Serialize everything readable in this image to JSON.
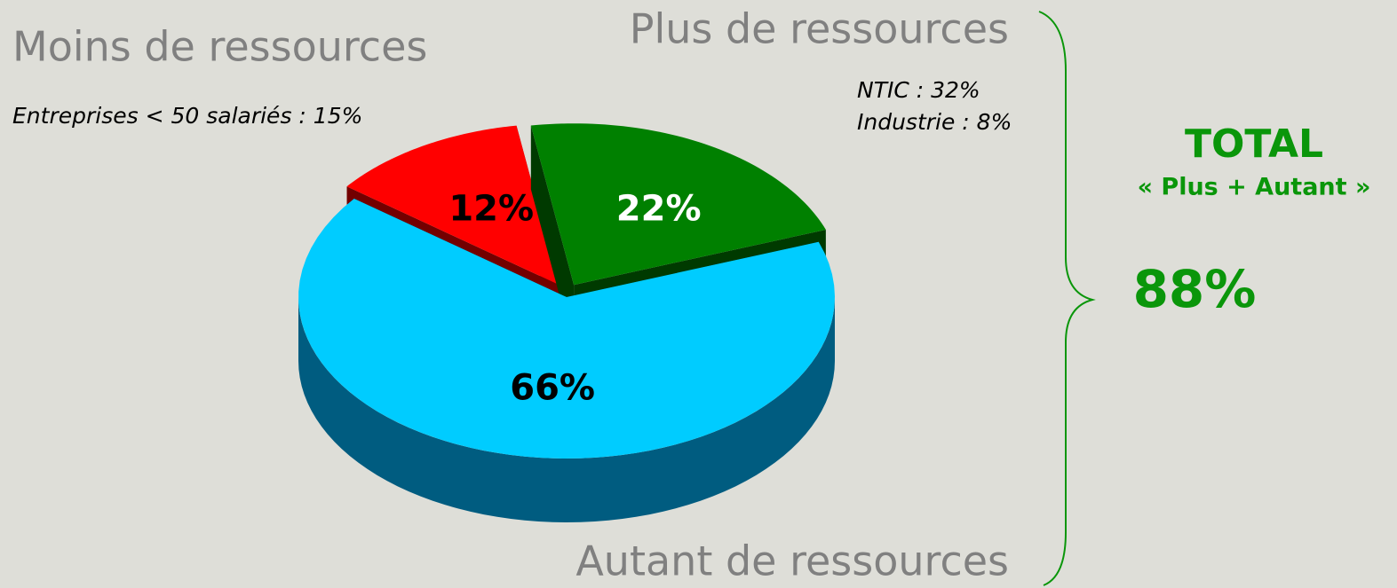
{
  "chart_data": {
    "type": "pie",
    "categories": [
      "Autant de ressources",
      "Moins de ressources",
      "Plus de ressources"
    ],
    "values": [
      66,
      12,
      22
    ],
    "value_labels": [
      "66%",
      "12%",
      "22%"
    ],
    "colors": [
      "#00ccff",
      "#ff0000",
      "#008000"
    ],
    "label_colors": [
      "#000000",
      "#000000",
      "#ffffff"
    ],
    "annotations": {
      "moins_note": "Entreprises < 50 salariés : 15%",
      "plus_notes": [
        "NTIC : 32%",
        "Industrie : 8%"
      ],
      "total_title": "TOTAL",
      "total_subtitle": "« Plus + Autant »",
      "total_value": "88%"
    }
  }
}
